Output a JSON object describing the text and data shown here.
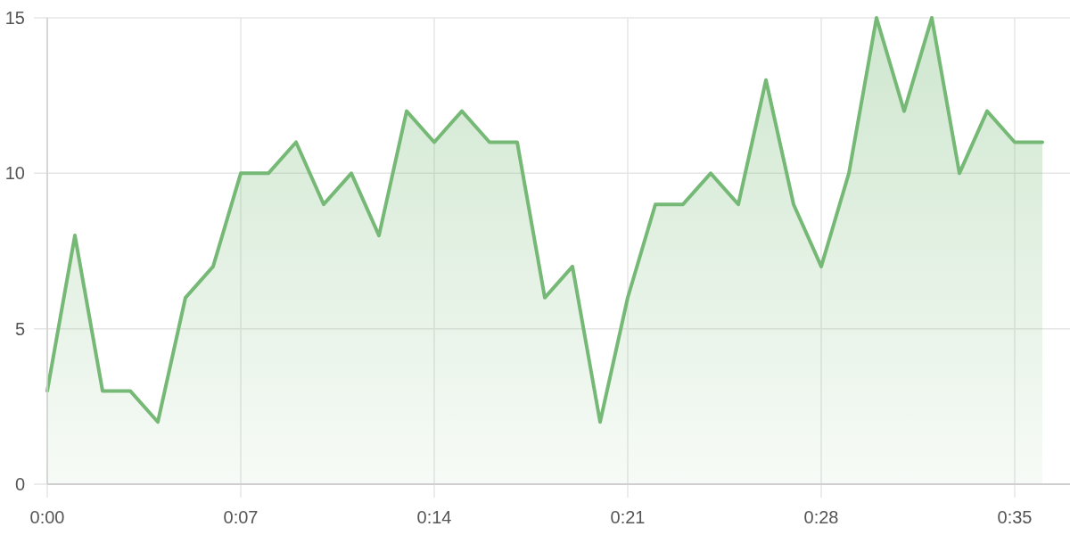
{
  "chart_data": {
    "type": "area",
    "x": [
      0,
      1,
      2,
      3,
      4,
      5,
      6,
      7,
      8,
      9,
      10,
      11,
      12,
      13,
      14,
      15,
      16,
      17,
      18,
      19,
      20,
      21,
      22,
      23,
      24,
      25,
      26,
      27,
      28,
      29,
      30,
      31,
      32,
      33,
      34,
      35,
      36
    ],
    "series": [
      {
        "color": "#76b976",
        "values": [
          3,
          8,
          3,
          3,
          2,
          6,
          7,
          10,
          10,
          11,
          9,
          10,
          8,
          12,
          11,
          12,
          11,
          11,
          6,
          7,
          2,
          6,
          9,
          9,
          10,
          9,
          13,
          9,
          7,
          10,
          15,
          12,
          15,
          10,
          12,
          11,
          11
        ]
      }
    ],
    "xlim": [
      0,
      37
    ],
    "xticks": [
      {
        "value": 0,
        "label": "0:00"
      },
      {
        "value": 7,
        "label": "0:07"
      },
      {
        "value": 14,
        "label": "0:14"
      },
      {
        "value": 21,
        "label": "0:21"
      },
      {
        "value": 28,
        "label": "0:28"
      },
      {
        "value": 35,
        "label": "0:35"
      }
    ],
    "ylim": [
      0,
      15
    ],
    "yticks": [
      0,
      5,
      10,
      15
    ],
    "grid": true,
    "marker": "none",
    "line_style": "solid"
  }
}
